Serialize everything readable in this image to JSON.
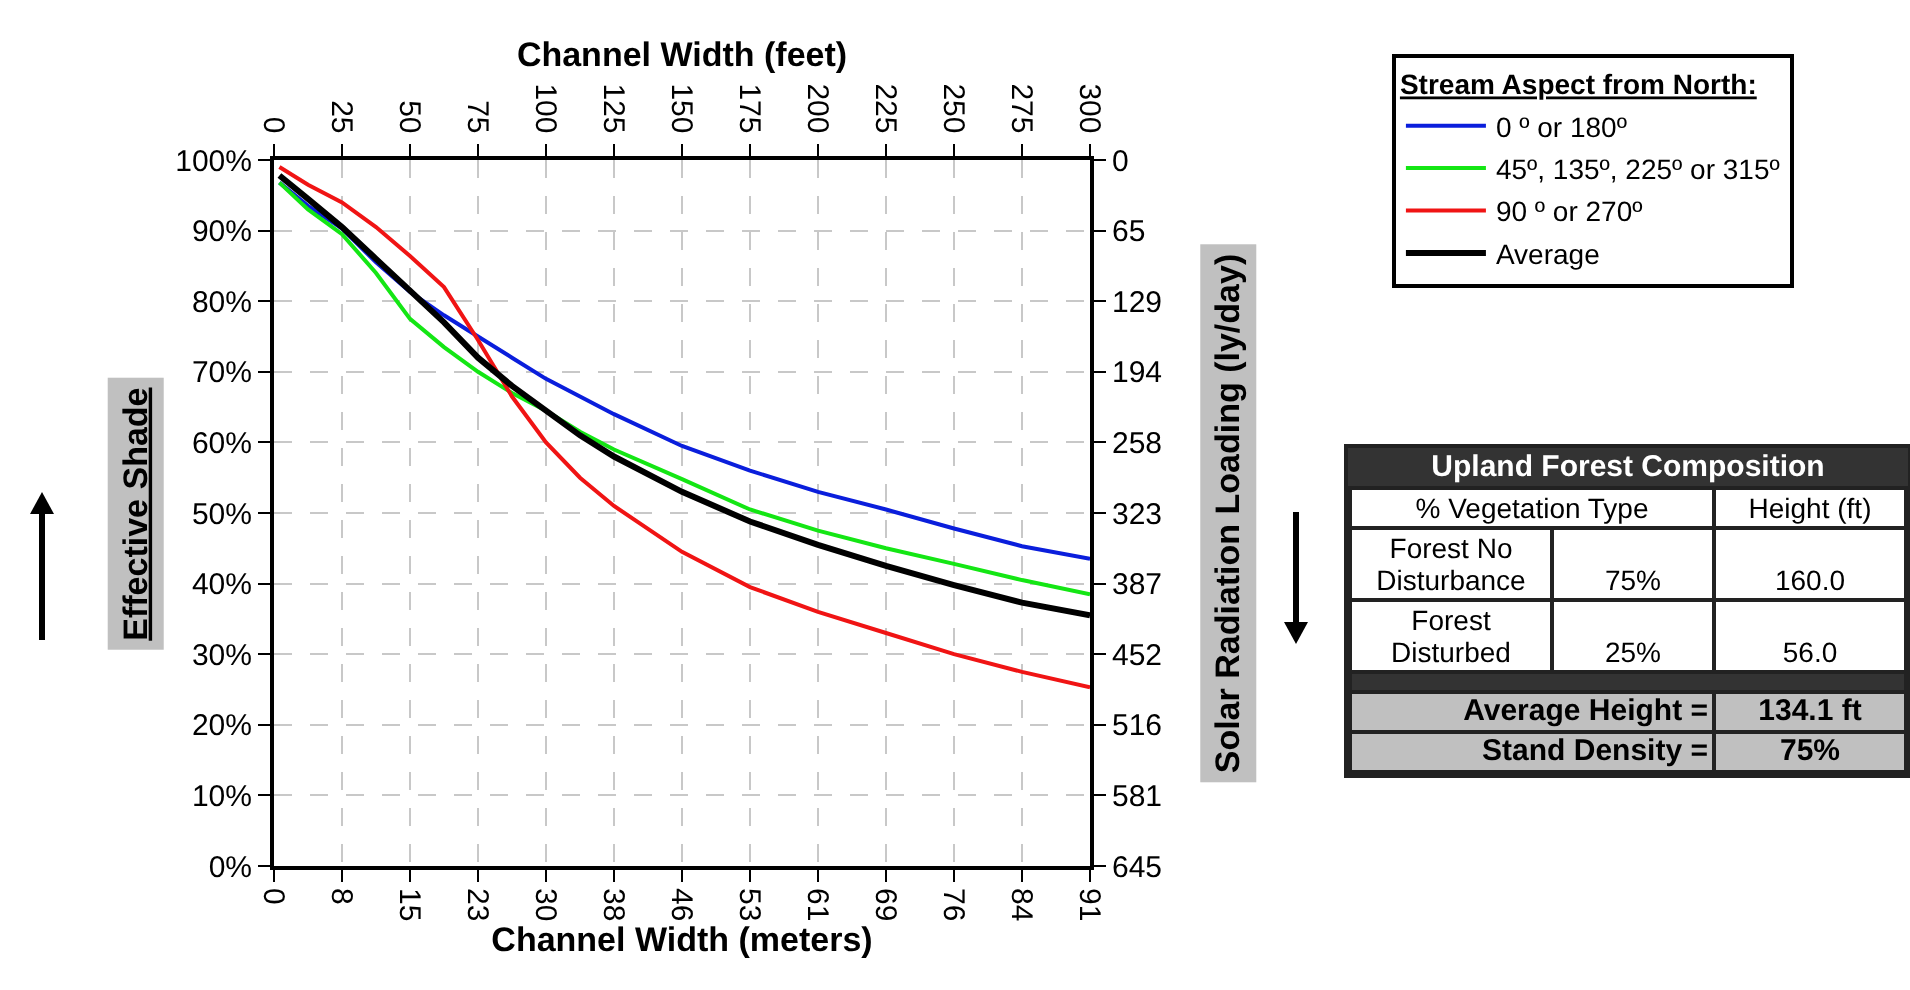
{
  "chart_data": [
    {
      "type": "line",
      "xlabel": "Channel Width (meters)",
      "x2label": "Channel Width (feet)",
      "ylabel": "Effective Shade",
      "y2label": "Solar Radiation Loading (ly/day)",
      "legend_title": "Stream Aspect from North:",
      "x": [
        0.61,
        3.81,
        7.62,
        11.43,
        15.24,
        19.05,
        22.86,
        26.67,
        30.48,
        34.29,
        38.1,
        45.72,
        53.34,
        60.96,
        68.58,
        76.2,
        83.82,
        91.44
      ],
      "series": [
        {
          "name": "0 º or 180º",
          "color": "#0a1edc",
          "values": [
            96.8,
            93.5,
            90.3,
            85.5,
            81.3,
            78,
            75,
            72,
            69,
            66.5,
            64,
            59.5,
            56,
            53,
            50.5,
            47.8,
            45.3,
            43.5
          ]
        },
        {
          "name": "45º, 135º, 225º or 315º",
          "color": "#14e614",
          "values": [
            96.8,
            93,
            89.5,
            84,
            77.5,
            73.5,
            70,
            67,
            64.5,
            61.5,
            59,
            54.8,
            50.5,
            47.5,
            45,
            42.8,
            40.5,
            38.5
          ]
        },
        {
          "name": "90 º or 270º",
          "color": "#f01414",
          "values": [
            99,
            96.5,
            94,
            90.5,
            86.4,
            82,
            74.5,
            66.5,
            60,
            55,
            51,
            44.5,
            39.5,
            36,
            33,
            30,
            27.5,
            25.3
          ]
        },
        {
          "name": "Average",
          "color": "#000000",
          "values": [
            97.8,
            94.5,
            90.5,
            86,
            81.5,
            77,
            72,
            68,
            64.5,
            61,
            58,
            53,
            48.8,
            45.5,
            42.5,
            39.8,
            37.3,
            35.5
          ]
        }
      ],
      "xlim": [
        0,
        91.44
      ],
      "xticks": [
        0,
        {
          "value": 7.62,
          "label": "8"
        },
        {
          "value": 15.24,
          "label": "15"
        },
        {
          "value": 22.86,
          "label": "23"
        },
        {
          "value": 30.48,
          "label": "30"
        },
        {
          "value": 38.1,
          "label": "38"
        },
        {
          "value": 45.72,
          "label": "46"
        },
        {
          "value": 53.34,
          "label": "53"
        },
        {
          "value": 60.96,
          "label": "61"
        },
        {
          "value": 68.58,
          "label": "69"
        },
        {
          "value": 76.2,
          "label": "76"
        },
        {
          "value": 83.82,
          "label": "84"
        },
        {
          "value": 91.44,
          "label": "91"
        }
      ],
      "x2lim": [
        0,
        300
      ],
      "x2ticks": [
        0,
        25,
        50,
        75,
        100,
        125,
        150,
        175,
        200,
        225,
        250,
        275,
        300
      ],
      "ylim": [
        0,
        100
      ],
      "yticks": [
        {
          "value": 0,
          "label": "0%"
        },
        {
          "value": 10,
          "label": "10%"
        },
        {
          "value": 20,
          "label": "20%"
        },
        {
          "value": 30,
          "label": "30%"
        },
        {
          "value": 40,
          "label": "40%"
        },
        {
          "value": 50,
          "label": "50%"
        },
        {
          "value": 60,
          "label": "60%"
        },
        {
          "value": 70,
          "label": "70%"
        },
        {
          "value": 80,
          "label": "80%"
        },
        {
          "value": 90,
          "label": "90%"
        },
        {
          "value": 100,
          "label": "100%"
        }
      ],
      "y2lim": [
        645,
        0
      ],
      "y2ticks": [
        0,
        {
          "value": 64.5,
          "label": "65"
        },
        129,
        {
          "value": 193.5,
          "label": "194"
        },
        258,
        {
          "value": 322.5,
          "label": "323"
        },
        387,
        {
          "value": 451.5,
          "label": "452"
        },
        516,
        {
          "value": 580.5,
          "label": "581"
        },
        645
      ],
      "grid": true,
      "legend": "top right",
      "marker": "none",
      "line_style": "solid"
    },
    {
      "type": "other",
      "title": "Upland Forest Composition",
      "annotations": [
        "% Vegetation Type",
        "Height (ft)",
        "Forest No Disturbance",
        "75%",
        "160.0",
        "Forest Disturbed",
        "25%",
        "56.0",
        "Average Height =",
        "134.1 ft",
        "Stand Density =",
        "75%"
      ]
    }
  ]
}
